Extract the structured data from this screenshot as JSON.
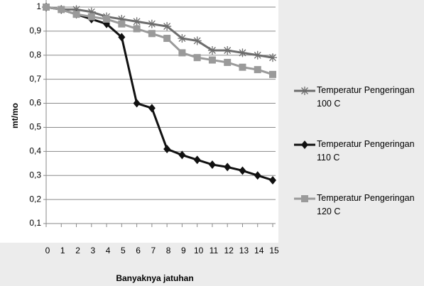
{
  "chart_data": {
    "type": "line",
    "xlabel": "Banyaknya jatuhan",
    "ylabel": "mt/mo",
    "x": [
      0,
      1,
      2,
      3,
      4,
      5,
      6,
      7,
      8,
      9,
      10,
      11,
      12,
      13,
      14,
      15
    ],
    "xlim": [
      0,
      15
    ],
    "xticks": [
      0,
      1,
      2,
      3,
      4,
      5,
      6,
      7,
      8,
      9,
      10,
      11,
      12,
      13,
      14,
      15
    ],
    "ylim": [
      0.1,
      1
    ],
    "yticks": [
      {
        "value": 0.1,
        "label": "0,1"
      },
      {
        "value": 0.2,
        "label": "0,2"
      },
      {
        "value": 0.3,
        "label": "0,3"
      },
      {
        "value": 0.4,
        "label": "0,4"
      },
      {
        "value": 0.5,
        "label": "0,5"
      },
      {
        "value": 0.6,
        "label": "0,6"
      },
      {
        "value": 0.7,
        "label": "0,7"
      },
      {
        "value": 0.8,
        "label": "0,8"
      },
      {
        "value": 0.9,
        "label": "0,9"
      },
      1
    ],
    "grid": true,
    "legend": "right",
    "series": [
      {
        "name": "Temperatur Pengeringan 100 C",
        "color": "#6d6d6d",
        "marker": "star",
        "values": [
          1,
          0.99,
          0.99,
          0.98,
          0.96,
          0.95,
          0.94,
          0.93,
          0.92,
          0.87,
          0.86,
          0.82,
          0.82,
          0.81,
          0.8,
          0.79
        ]
      },
      {
        "name": "Temperatur Pengeringan 110 C",
        "color": "#111111",
        "marker": "diamond",
        "values": [
          1,
          0.99,
          0.97,
          0.95,
          0.93,
          0.875,
          0.6,
          0.58,
          0.41,
          0.385,
          0.365,
          0.345,
          0.335,
          0.32,
          0.3,
          0.28
        ]
      },
      {
        "name": "Temperatur Pengeringan 120 C",
        "color": "#9a9a9a",
        "marker": "square",
        "values": [
          1,
          0.99,
          0.97,
          0.96,
          0.95,
          0.93,
          0.91,
          0.89,
          0.87,
          0.81,
          0.79,
          0.78,
          0.77,
          0.75,
          0.74,
          0.72
        ]
      }
    ]
  }
}
